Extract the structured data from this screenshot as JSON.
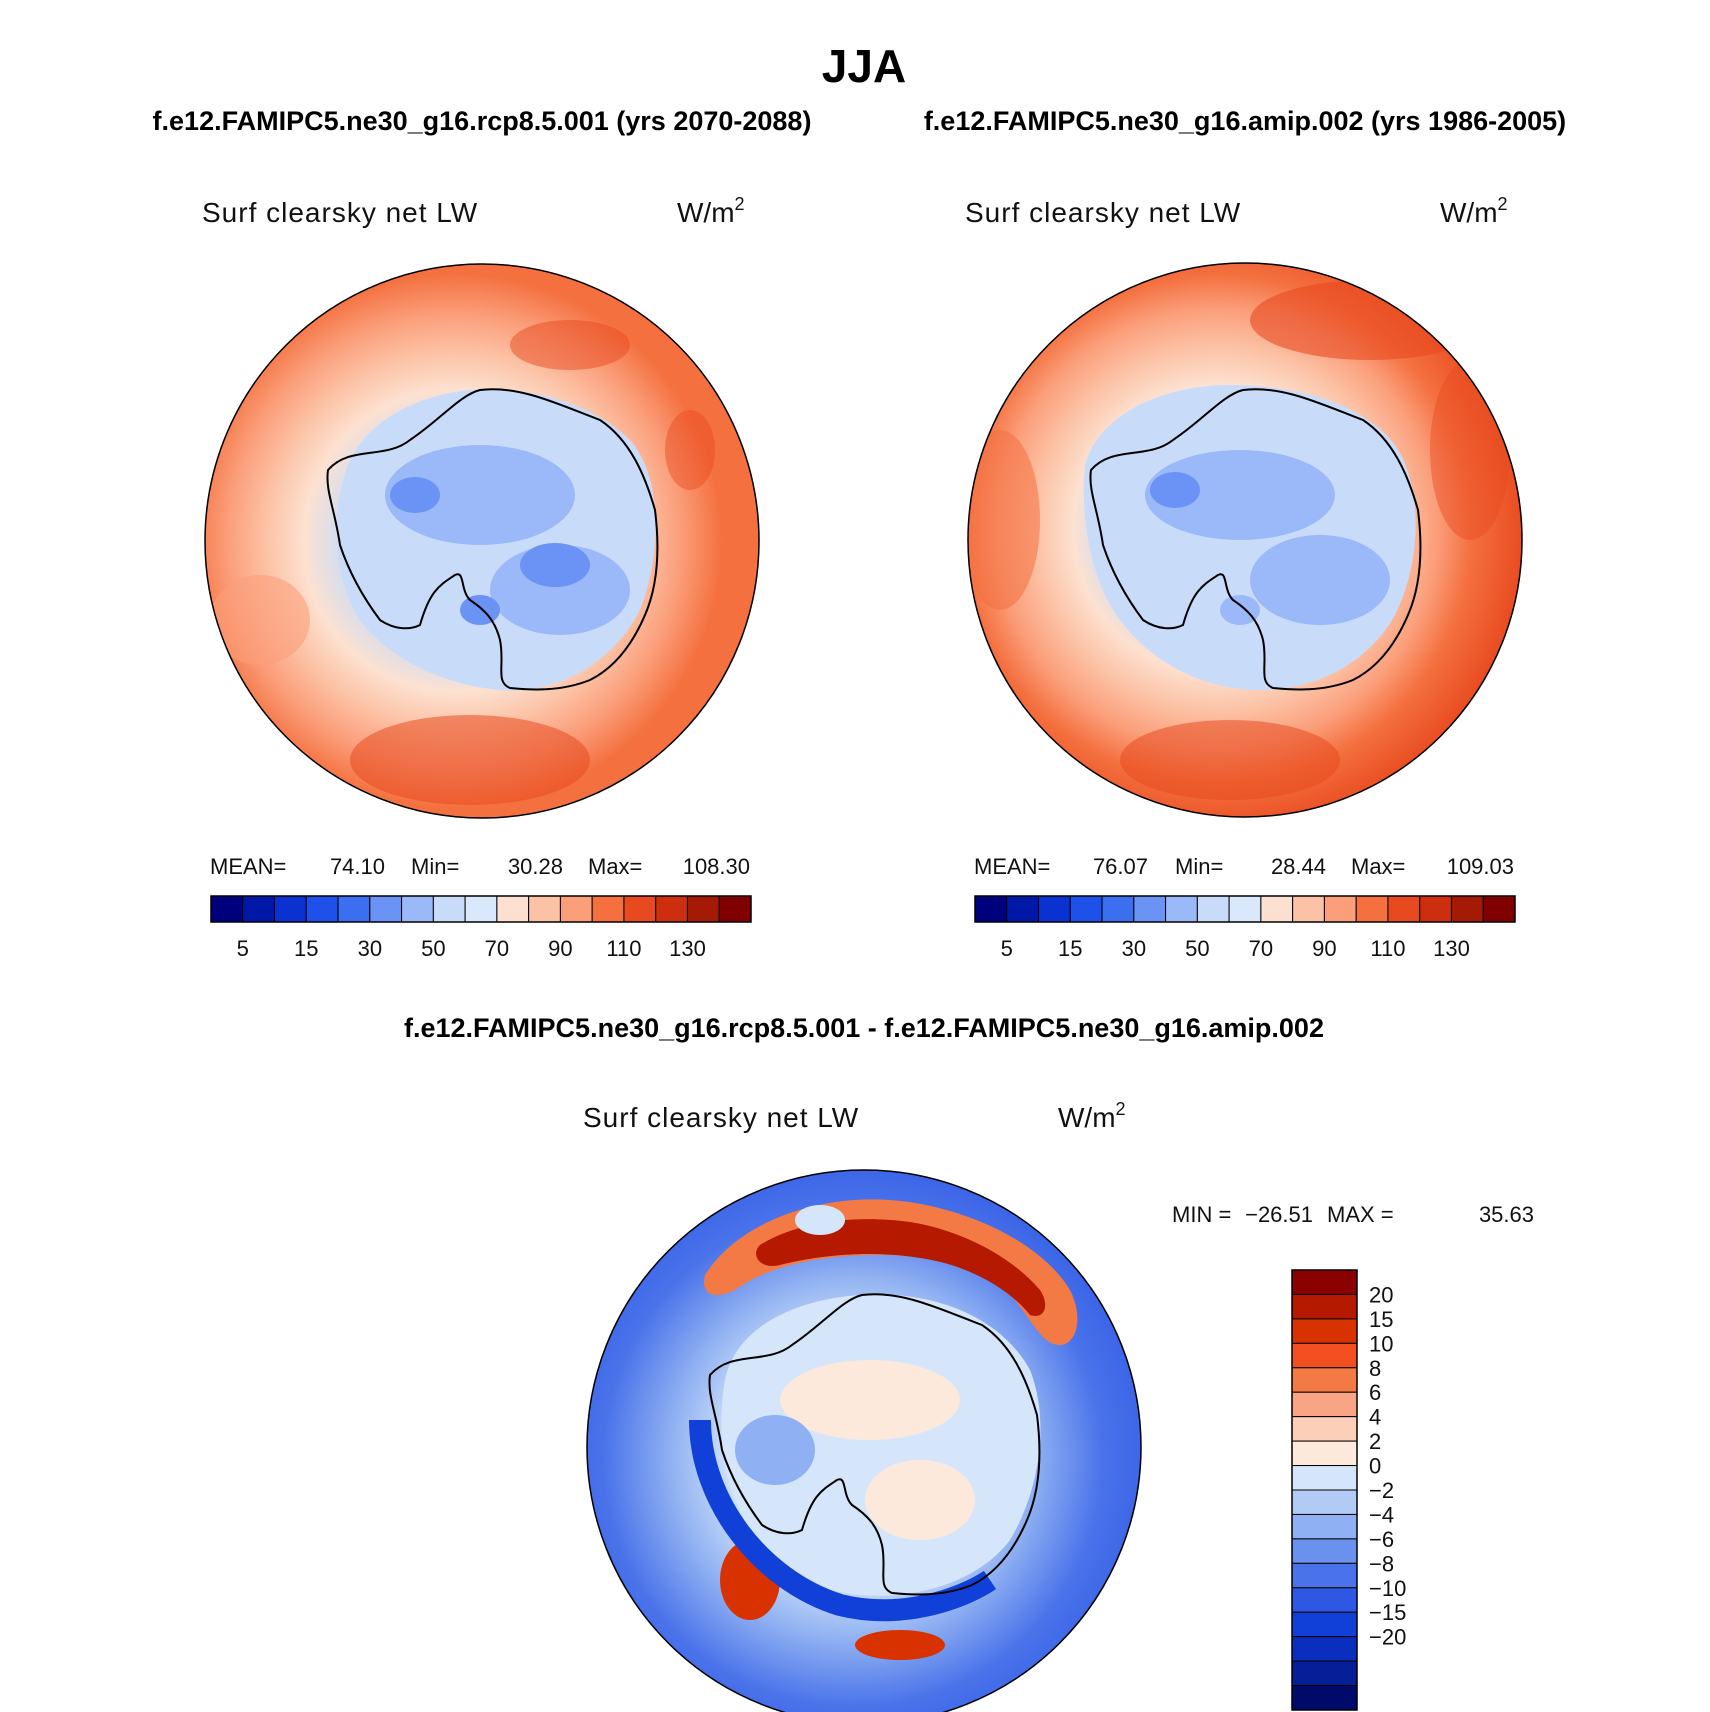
{
  "figure": {
    "title": "JJA",
    "top_header_left": "f.e12.FAMIPC5.ne30_g16.rcp8.5.001 (yrs 2070-2088)",
    "top_header_right": "f.e12.FAMIPC5.ne30_g16.amip.002 (yrs 1986-2005)",
    "bottom_header": "f.e12.FAMIPC5.ne30_g16.rcp8.5.001 - f.e12.FAMIPC5.ne30_g16.amip.002"
  },
  "panels": [
    {
      "id": "rcp85",
      "variable": "Surf clearsky net LW",
      "units": "W/m",
      "units_sup": "2",
      "stats": {
        "mean_label": "MEAN=",
        "mean": "74.10",
        "min_label": "Min=",
        "min": "30.28",
        "max_label": "Max=",
        "max": "108.30"
      }
    },
    {
      "id": "amip",
      "variable": "Surf clearsky net LW",
      "units": "W/m",
      "units_sup": "2",
      "stats": {
        "mean_label": "MEAN=",
        "mean": "76.07",
        "min_label": "Min=",
        "min": "28.44",
        "max_label": "Max=",
        "max": "109.03"
      }
    },
    {
      "id": "difference",
      "variable": "Surf clearsky net LW",
      "units": "W/m",
      "units_sup": "2",
      "stats": {
        "min_label": "MIN =",
        "min": "−26.51",
        "max_label": "MAX =",
        "max": "35.63"
      }
    }
  ],
  "abs_colorbar": {
    "colors": [
      "#00007f",
      "#0018a8",
      "#0a32d0",
      "#1e50ea",
      "#3c6ff0",
      "#6a93f5",
      "#9bb8f8",
      "#c8dcfa",
      "#d9e8fb",
      "#fde1d0",
      "#fcc2a5",
      "#fb9e7a",
      "#f4703f",
      "#e84a1f",
      "#cc2e0e",
      "#a51a05",
      "#800000"
    ],
    "tick_labels": [
      "5",
      "15",
      "30",
      "50",
      "70",
      "90",
      "110",
      "130"
    ]
  },
  "diff_colorbar": {
    "colors_top_to_bottom": [
      "#8b0000",
      "#b51a00",
      "#d83200",
      "#f25020",
      "#f47a45",
      "#f9a585",
      "#fcd0b8",
      "#fde8dc",
      "#d6e6fa",
      "#b2cbf5",
      "#8fb0f2",
      "#6a91ee",
      "#4a73ea",
      "#2c58e4",
      "#1040d8",
      "#0a2fbe",
      "#051f98",
      "#000a6a"
    ],
    "tick_labels": [
      "20",
      "15",
      "10",
      "8",
      "6",
      "4",
      "2",
      "0",
      "−2",
      "−4",
      "−6",
      "−8",
      "−10",
      "−15",
      "−20"
    ]
  },
  "maps": {
    "land_outline": "Antarctica",
    "projection": "south polar stereographic"
  }
}
